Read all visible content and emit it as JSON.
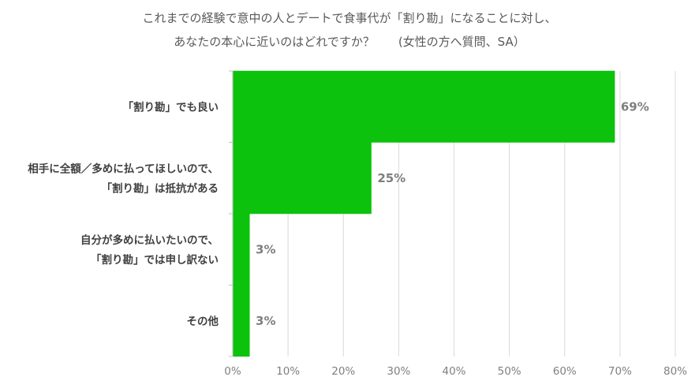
{
  "chart_data": {
    "type": "bar",
    "orientation": "horizontal",
    "title_lines": [
      "これまでの経験で意中の人とデートで食事代が「割り勘」になることに対し、",
      "あなたの本心に近いのはどれですか？　　(女性の方へ質問、SA）"
    ],
    "categories": [
      [
        "「割り勘」でも良い"
      ],
      [
        "相手に全額／多めに払ってほしいので、",
        "「割り勘」は抵抗がある"
      ],
      [
        "自分が多めに払いたいので、",
        "「割り勘」では申し訳ない"
      ],
      [
        "その他"
      ]
    ],
    "values": [
      69,
      25,
      3,
      3
    ],
    "value_labels": [
      "69%",
      "25%",
      "3%",
      "3%"
    ],
    "xlim": [
      0,
      80
    ],
    "x_ticks": [
      "0%",
      "10%",
      "20%",
      "30%",
      "40%",
      "50%",
      "60%",
      "70%",
      "80%"
    ],
    "bar_color": "#0cc20c",
    "grid": true,
    "legend": "none"
  }
}
